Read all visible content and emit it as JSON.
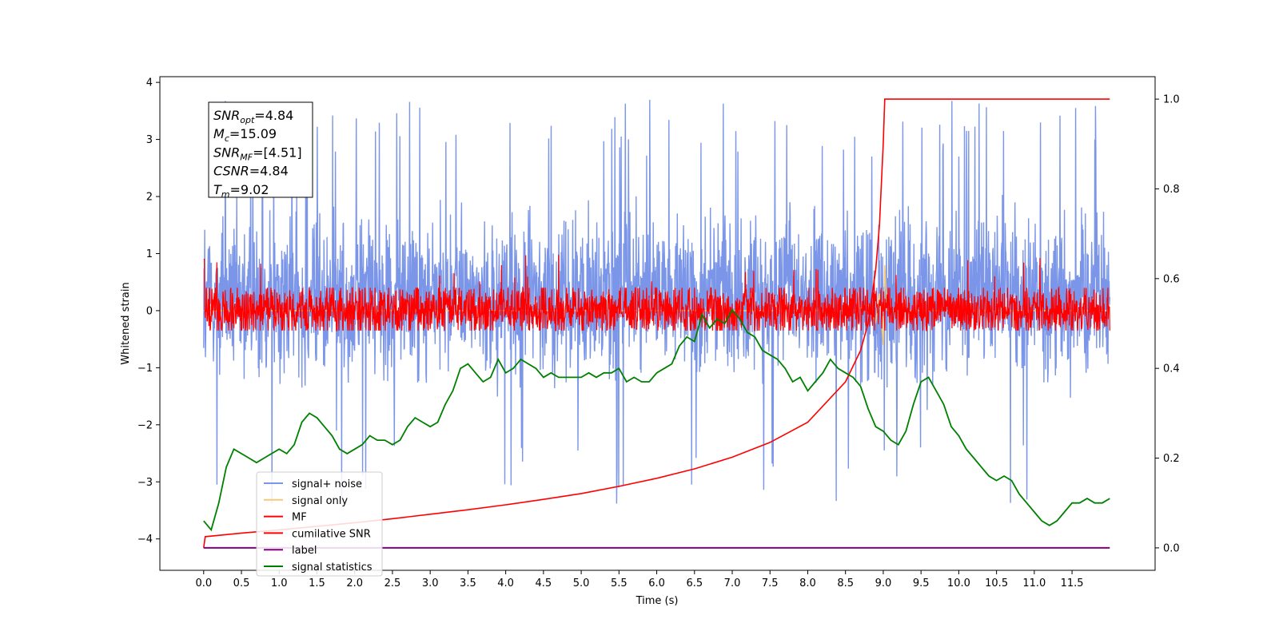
{
  "chart_data": {
    "type": "line",
    "title": "",
    "xlabel": "Time (s)",
    "ylabel": "Whitened strain",
    "xlim": [
      -0.58,
      12.6
    ],
    "ylim": [
      -4.55,
      4.1
    ],
    "y2lim": [
      -0.05,
      1.05
    ],
    "grid": false,
    "legend_position": "lower-left",
    "x_ticks": [
      0.0,
      0.5,
      1.0,
      1.5,
      2.0,
      2.5,
      3.0,
      3.5,
      4.0,
      4.5,
      5.0,
      5.5,
      6.0,
      6.5,
      7.0,
      7.5,
      8.0,
      8.5,
      9.0,
      9.5,
      10.0,
      10.5,
      11.0,
      11.5
    ],
    "x_tick_labels": [
      "0.0",
      "0.5",
      "1.0",
      "1.5",
      "2.0",
      "2.5",
      "3.0",
      "3.5",
      "4.0",
      "4.5",
      "5.0",
      "5.5",
      "6.0",
      "6.5",
      "7.0",
      "7.5",
      "8.0",
      "8.5",
      "9.0",
      "9.5",
      "10.0",
      "10.5",
      "11.0",
      "11.5"
    ],
    "y_ticks": [
      4,
      3,
      2,
      1,
      0,
      -1,
      -2,
      -3,
      -4
    ],
    "y_tick_labels": [
      "4",
      "3",
      "2",
      "1",
      "0",
      "−1",
      "−2",
      "−3",
      "−4"
    ],
    "y2_ticks": [
      1.0,
      0.8,
      0.6,
      0.4,
      0.2,
      0.0
    ],
    "y2_tick_labels": [
      "1.0",
      "0.8",
      "0.6",
      "0.4",
      "0.2",
      "0.0"
    ],
    "annotation": [
      {
        "base": "SNR",
        "sub": "opt",
        "value": "=4.84"
      },
      {
        "base": "M",
        "sub": "c",
        "value": "=15.09"
      },
      {
        "base": "SNR",
        "sub": "MF",
        "value": "=[4.51]"
      },
      {
        "base": "CSNR",
        "sub": "",
        "value": "=4.84"
      },
      {
        "base": "T",
        "sub": "m",
        "value": "=9.02"
      }
    ],
    "series": [
      {
        "name": "signal+ noise",
        "color": "#7b96e8",
        "axis": "left",
        "note": "dense whitened noise, x from 0 to 12",
        "x_range": [
          0,
          12
        ],
        "envelope": [
          -2.1,
          2.7
        ],
        "spike_max": 3.7,
        "spike_min": -4.15
      },
      {
        "name": "signal only",
        "color": "#f5c97a",
        "axis": "left",
        "x": [
          0,
          8.6,
          8.8,
          8.9,
          8.95,
          9.0,
          9.02,
          9.05,
          12
        ],
        "y": [
          0,
          0,
          0.1,
          -0.2,
          0.3,
          -0.6,
          0.8,
          0,
          0
        ]
      },
      {
        "name": "MF",
        "color": "#ff0000",
        "axis": "left",
        "note": "dense matched-filter output",
        "x_range": [
          0,
          12
        ],
        "envelope": [
          -0.35,
          0.4
        ],
        "spike_max": 1.0
      },
      {
        "name": "cumilative SNR",
        "color": "#ff0000",
        "axis": "right",
        "x": [
          0,
          0.02,
          0.5,
          1.0,
          1.5,
          2.0,
          2.5,
          3.0,
          3.5,
          4.0,
          4.5,
          5.0,
          5.5,
          6.0,
          6.5,
          7.0,
          7.5,
          8.0,
          8.5,
          8.7,
          8.8,
          8.9,
          8.95,
          9.0,
          9.02,
          12.0
        ],
        "y": [
          0.0,
          0.025,
          0.033,
          0.04,
          0.048,
          0.056,
          0.065,
          0.075,
          0.085,
          0.096,
          0.108,
          0.121,
          0.137,
          0.155,
          0.176,
          0.202,
          0.235,
          0.28,
          0.37,
          0.44,
          0.5,
          0.62,
          0.72,
          0.9,
          1.0,
          1.0
        ]
      },
      {
        "name": "label",
        "color": "#800080",
        "axis": "right",
        "x": [
          0,
          12
        ],
        "y": [
          0,
          0
        ]
      },
      {
        "name": "signal statistics",
        "color": "#008000",
        "axis": "right",
        "x": [
          0.0,
          0.1,
          0.2,
          0.3,
          0.4,
          0.5,
          0.6,
          0.7,
          0.8,
          0.9,
          1.0,
          1.1,
          1.2,
          1.3,
          1.4,
          1.5,
          1.6,
          1.7,
          1.8,
          1.9,
          2.0,
          2.1,
          2.2,
          2.3,
          2.4,
          2.5,
          2.6,
          2.7,
          2.8,
          2.9,
          3.0,
          3.1,
          3.2,
          3.3,
          3.4,
          3.5,
          3.6,
          3.7,
          3.8,
          3.9,
          4.0,
          4.1,
          4.2,
          4.3,
          4.4,
          4.5,
          4.6,
          4.7,
          4.8,
          4.9,
          5.0,
          5.1,
          5.2,
          5.3,
          5.4,
          5.5,
          5.6,
          5.7,
          5.8,
          5.9,
          6.0,
          6.1,
          6.2,
          6.3,
          6.4,
          6.5,
          6.6,
          6.7,
          6.8,
          6.9,
          7.0,
          7.1,
          7.2,
          7.3,
          7.4,
          7.5,
          7.6,
          7.7,
          7.8,
          7.9,
          8.0,
          8.1,
          8.2,
          8.3,
          8.4,
          8.5,
          8.6,
          8.7,
          8.8,
          8.9,
          9.0,
          9.1,
          9.2,
          9.3,
          9.4,
          9.5,
          9.6,
          9.7,
          9.8,
          9.9,
          10.0,
          10.1,
          10.2,
          10.3,
          10.4,
          10.5,
          10.6,
          10.7,
          10.8,
          10.9,
          11.0,
          11.1,
          11.2,
          11.3,
          11.4,
          11.5,
          11.6,
          11.7,
          11.8,
          11.9,
          12.0
        ],
        "y": [
          0.06,
          0.04,
          0.1,
          0.18,
          0.22,
          0.21,
          0.2,
          0.19,
          0.2,
          0.21,
          0.22,
          0.21,
          0.23,
          0.28,
          0.3,
          0.29,
          0.27,
          0.25,
          0.22,
          0.21,
          0.22,
          0.23,
          0.25,
          0.24,
          0.24,
          0.23,
          0.24,
          0.27,
          0.29,
          0.28,
          0.27,
          0.28,
          0.32,
          0.35,
          0.4,
          0.41,
          0.39,
          0.37,
          0.38,
          0.42,
          0.39,
          0.4,
          0.42,
          0.41,
          0.4,
          0.38,
          0.39,
          0.38,
          0.38,
          0.38,
          0.38,
          0.39,
          0.38,
          0.39,
          0.39,
          0.4,
          0.37,
          0.38,
          0.37,
          0.37,
          0.39,
          0.4,
          0.41,
          0.45,
          0.47,
          0.46,
          0.52,
          0.49,
          0.51,
          0.5,
          0.53,
          0.51,
          0.48,
          0.47,
          0.44,
          0.43,
          0.42,
          0.4,
          0.37,
          0.38,
          0.35,
          0.37,
          0.39,
          0.42,
          0.4,
          0.39,
          0.38,
          0.36,
          0.31,
          0.27,
          0.26,
          0.24,
          0.23,
          0.26,
          0.32,
          0.37,
          0.38,
          0.35,
          0.32,
          0.27,
          0.25,
          0.22,
          0.2,
          0.18,
          0.16,
          0.15,
          0.16,
          0.15,
          0.12,
          0.1,
          0.08,
          0.06,
          0.05,
          0.06,
          0.08,
          0.1,
          0.1,
          0.11,
          0.1,
          0.1,
          0.11
        ]
      }
    ]
  }
}
